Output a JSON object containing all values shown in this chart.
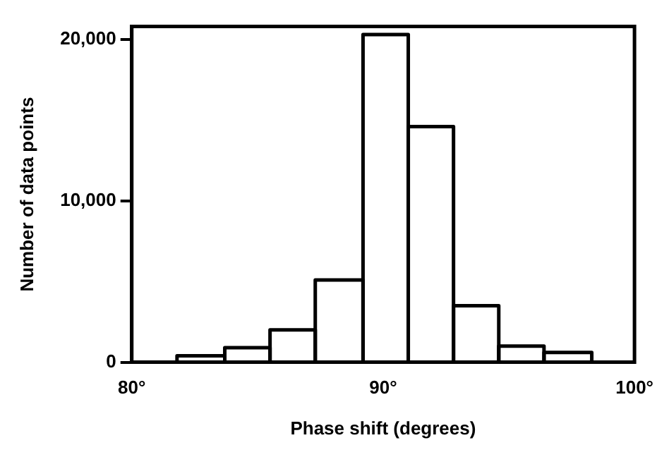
{
  "chart_data": {
    "type": "histogram",
    "xlabel": "Phase shift (degrees)",
    "ylabel": "Number of data points",
    "bins": [
      81.8,
      83.7,
      85.5,
      87.3,
      89.2,
      91.0,
      92.8,
      94.6,
      96.4,
      98.3
    ],
    "values": [
      400,
      900,
      2000,
      5100,
      20300,
      14600,
      3500,
      1000,
      600
    ],
    "color": "#000000",
    "xlim": [
      80,
      100
    ],
    "xticks": [
      {
        "value": 80,
        "label": "80°"
      },
      {
        "value": 90,
        "label": "90°"
      },
      {
        "value": 100,
        "label": "100°"
      }
    ],
    "ylim": [
      0,
      20800
    ],
    "yticks": [
      {
        "value": 0,
        "label": "0"
      },
      {
        "value": 10000,
        "label": "10,000"
      },
      {
        "value": 20000,
        "label": "20,000"
      }
    ],
    "grid": false,
    "legend": false
  }
}
